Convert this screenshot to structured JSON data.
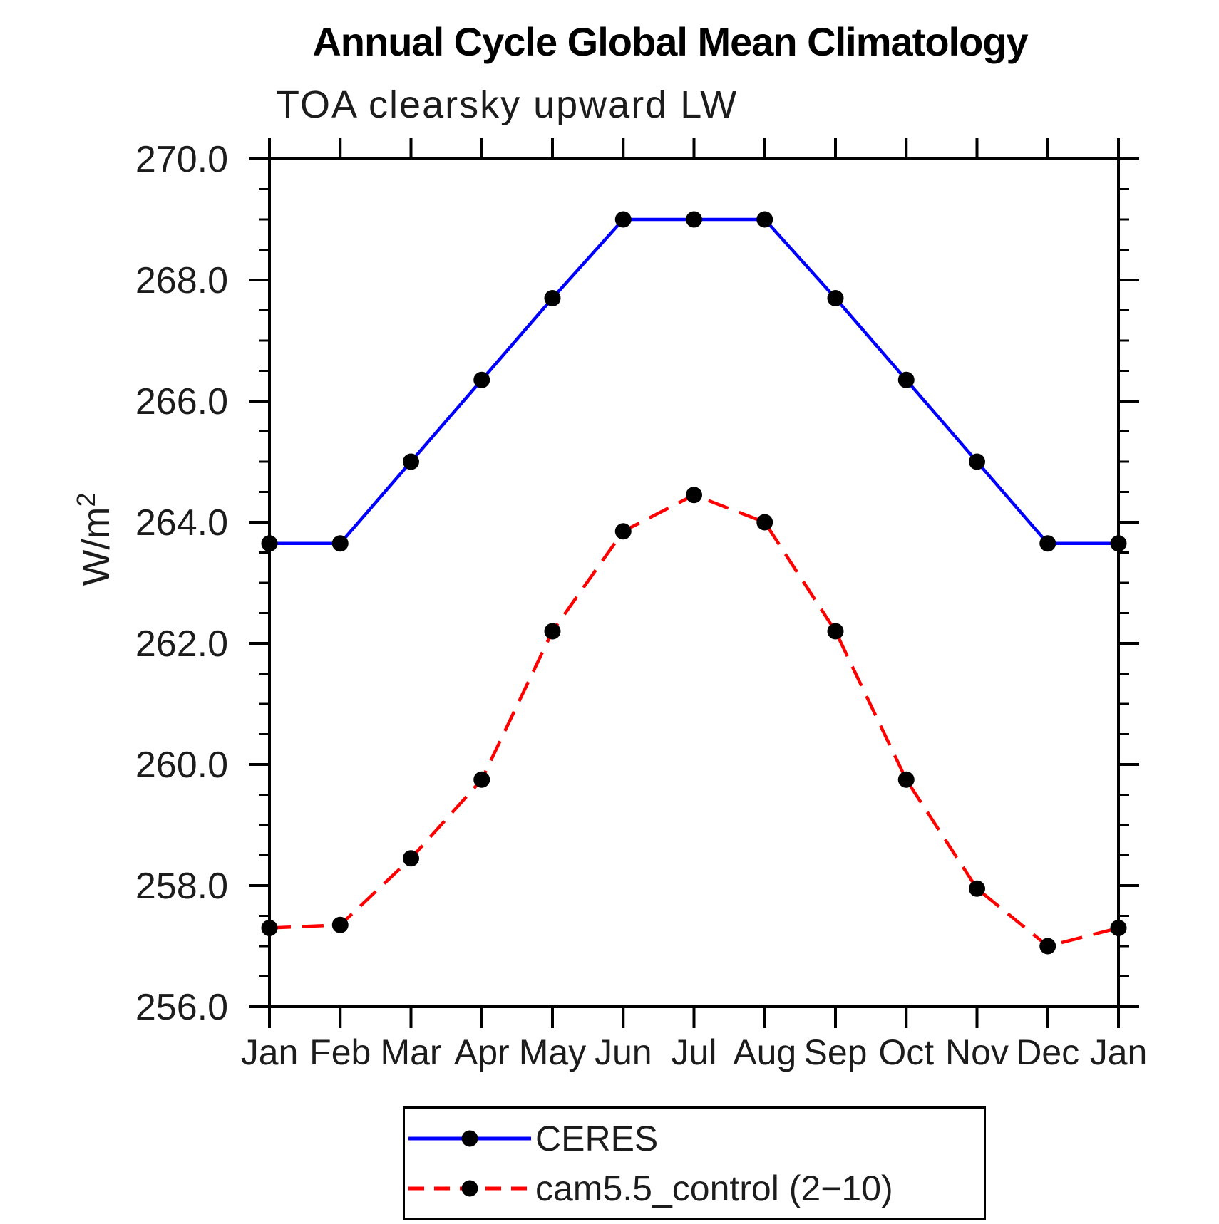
{
  "page": {
    "background": "#ffffff"
  },
  "chart_data": {
    "type": "line",
    "title": "Annual Cycle Global Mean Climatology",
    "subtitle": "TOA clearsky upward LW",
    "ylabel": "W/m2",
    "ylabel_base": "W/m",
    "ylabel_sup": "2",
    "x_categories": [
      "Jan",
      "Feb",
      "Mar",
      "Apr",
      "May",
      "Jun",
      "Jul",
      "Aug",
      "Sep",
      "Oct",
      "Nov",
      "Dec",
      "Jan"
    ],
    "ylim": [
      256.0,
      270.0
    ],
    "y_major_step": 2.0,
    "y_minor_step": 0.5,
    "ytick_labels": [
      "270.0",
      "268.0",
      "266.0",
      "264.0",
      "262.0",
      "260.0",
      "258.0",
      "256.0"
    ],
    "grid": false,
    "frame_color": "#000000",
    "marker_color": "#000000",
    "legend_position": "bottom-center",
    "series": [
      {
        "name": "CERES",
        "color": "#0000ff",
        "line_style": "solid",
        "values": [
          263.65,
          263.65,
          265.0,
          266.35,
          267.7,
          269.0,
          269.0,
          269.0,
          267.7,
          266.35,
          265.0,
          263.65,
          263.65
        ]
      },
      {
        "name": "cam5.5_control (2−10)",
        "color": "#ff0000",
        "line_style": "dashed",
        "values": [
          257.3,
          257.35,
          258.45,
          259.75,
          262.2,
          263.85,
          264.45,
          264.0,
          262.2,
          259.75,
          257.95,
          257.0,
          257.3
        ]
      }
    ]
  }
}
